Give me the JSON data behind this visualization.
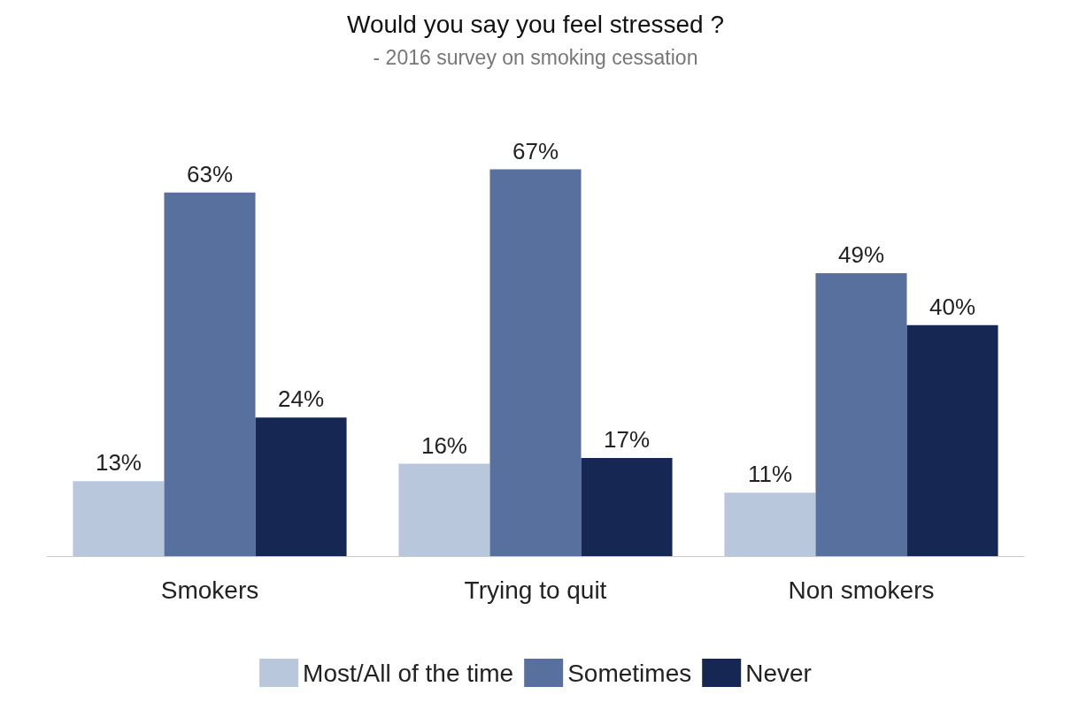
{
  "chart_data": {
    "type": "bar",
    "title": "Would you say you feel stressed ?",
    "subtitle": "- 2016 survey on smoking cessation",
    "categories": [
      "Smokers",
      "Trying to quit",
      "Non smokers"
    ],
    "series": [
      {
        "name": "Most/All of the time",
        "color": "#b9c7dc",
        "values": [
          13,
          16,
          11
        ],
        "value_labels": [
          "13%",
          "16%",
          "11%"
        ]
      },
      {
        "name": "Sometimes",
        "color": "#57709d",
        "values": [
          63,
          67,
          49
        ],
        "value_labels": [
          "63%",
          "67%",
          "49%"
        ]
      },
      {
        "name": "Never",
        "color": "#162753",
        "values": [
          24,
          17,
          40
        ],
        "value_labels": [
          "24%",
          "17%",
          "40%"
        ]
      }
    ],
    "legend": "bottom"
  }
}
